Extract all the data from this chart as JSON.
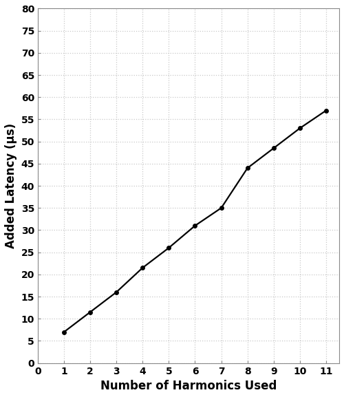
{
  "x": [
    1,
    2,
    3,
    4,
    5,
    6,
    7,
    8,
    9,
    10,
    11
  ],
  "y": [
    7.0,
    11.5,
    16.0,
    21.5,
    26.0,
    31.0,
    35.0,
    44.0,
    48.5,
    53.0,
    57.0
  ],
  "xlabel": "Number of Harmonics Used",
  "ylabel": "Added Latency (μs)",
  "xlim": [
    0,
    11.5
  ],
  "ylim": [
    0,
    80
  ],
  "xticks": [
    0,
    1,
    2,
    3,
    4,
    5,
    6,
    7,
    8,
    9,
    10,
    11
  ],
  "yticks": [
    0,
    5,
    10,
    15,
    20,
    25,
    30,
    35,
    40,
    45,
    50,
    55,
    60,
    65,
    70,
    75,
    80
  ],
  "line_color": "#000000",
  "marker": "o",
  "marker_size": 4,
  "line_width": 1.6,
  "grid_color": "#c8c8c8",
  "grid_style": ":",
  "background_color": "#ffffff",
  "xlabel_fontsize": 12,
  "ylabel_fontsize": 12,
  "tick_fontsize": 10,
  "spine_color": "#888888"
}
